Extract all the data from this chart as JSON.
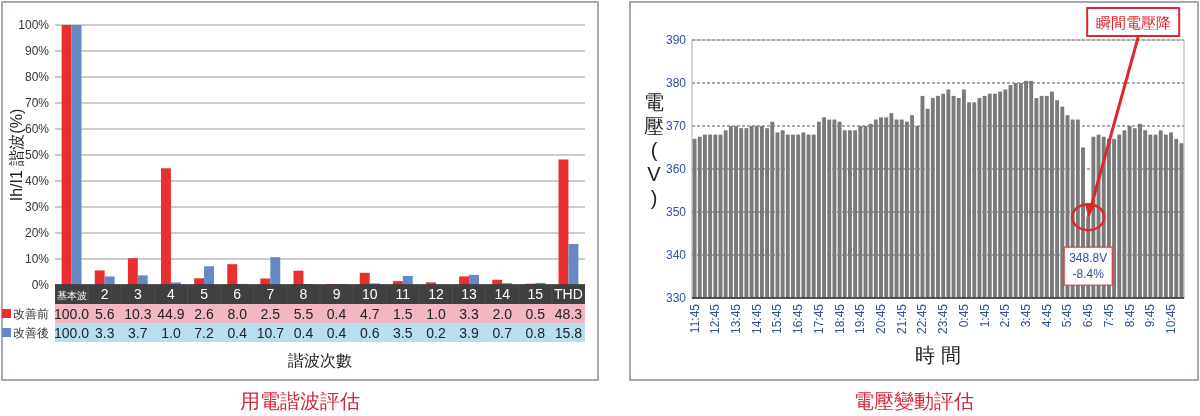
{
  "chart_data": [
    {
      "type": "bar",
      "title": "用電諧波評估",
      "xlabel": "諧波次數",
      "ylabel": "Ih/I1 諧波(%)",
      "categories": [
        "基本波",
        "2",
        "3",
        "4",
        "5",
        "6",
        "7",
        "8",
        "9",
        "10",
        "11",
        "12",
        "13",
        "14",
        "15",
        "THD"
      ],
      "series": [
        {
          "name": "改善前",
          "color": "#e8312f",
          "values": [
            100,
            5.6,
            10.3,
            44.9,
            2.6,
            8,
            2.5,
            5.5,
            0.4,
            4.7,
            1.5,
            1,
            3.3,
            2,
            0.5,
            48.3
          ],
          "value_labels": [
            "100.0",
            "5.6",
            "10.3",
            "44.9",
            "2.6",
            "8.0",
            "2.5",
            "5.5",
            "0.4",
            "4.7",
            "1.5",
            "1.0",
            "3.3",
            "2.0",
            "0.5",
            "48.3"
          ]
        },
        {
          "name": "改善後",
          "color": "#6688c3",
          "values": [
            100,
            3.3,
            3.7,
            1,
            7.2,
            0.4,
            10.7,
            0.4,
            0.4,
            0.6,
            3.5,
            0.2,
            3.9,
            0.7,
            0.8,
            15.8
          ],
          "value_labels": [
            "100.0",
            "3.3",
            "3.7",
            "1.0",
            "7.2",
            "0.4",
            "10.7",
            "0.4",
            "0.4",
            "0.6",
            "3.5",
            "0.2",
            "3.9",
            "0.7",
            "0.8",
            "15.8"
          ]
        }
      ],
      "ylim": [
        0,
        100
      ],
      "yticks": [
        {
          "value": 0,
          "label": "0%"
        },
        {
          "value": 10,
          "label": "10%"
        },
        {
          "value": 20,
          "label": "20%"
        },
        {
          "value": 30,
          "label": "30%"
        },
        {
          "value": 40,
          "label": "40%"
        },
        {
          "value": 50,
          "label": "50%"
        },
        {
          "value": 60,
          "label": "60%"
        },
        {
          "value": 70,
          "label": "70%"
        },
        {
          "value": 80,
          "label": "80%"
        },
        {
          "value": 90,
          "label": "90%"
        },
        {
          "value": 100,
          "label": "100%"
        }
      ],
      "grid": "y",
      "legend": "bottom left"
    },
    {
      "type": "bar",
      "title": "電壓變動評估",
      "xlabel": "時 間",
      "ylabel": "電壓(V)",
      "categories": [
        "11:45",
        null,
        null,
        null,
        "12:45",
        null,
        null,
        null,
        "13:45",
        null,
        null,
        null,
        "14:45",
        null,
        null,
        null,
        "15:45",
        null,
        null,
        null,
        "16:45",
        null,
        null,
        null,
        "17:45",
        null,
        null,
        null,
        "18:45",
        null,
        null,
        null,
        "19:45",
        null,
        null,
        null,
        "20:45",
        null,
        null,
        null,
        "21:45",
        null,
        null,
        null,
        "22:45",
        null,
        null,
        null,
        "23:45",
        null,
        null,
        null,
        "0:45",
        null,
        null,
        null,
        "1:45",
        null,
        null,
        null,
        "2:45",
        null,
        null,
        null,
        "3:45",
        null,
        null,
        null,
        "4:45",
        null,
        null,
        null,
        "5:45",
        null,
        null,
        null,
        "6:45",
        null,
        null,
        null,
        "7:45",
        null,
        null,
        null,
        "8:45",
        null,
        null,
        null,
        "9:45",
        null,
        null,
        null,
        "10:45",
        null,
        null
      ],
      "series": [
        {
          "color": "#7a7a7a",
          "values": [
            367,
            367.5,
            368,
            368,
            368,
            368,
            369,
            370,
            370,
            369.5,
            369.5,
            370,
            370,
            370,
            369.5,
            371,
            368.5,
            369,
            368,
            368,
            368,
            368.5,
            368,
            368,
            371,
            372,
            371.5,
            371.5,
            371,
            369,
            369,
            369,
            370,
            370,
            370.5,
            371.5,
            372,
            372,
            373,
            371.5,
            371.5,
            371,
            372.5,
            370,
            377,
            374,
            376.5,
            377,
            377.5,
            378.5,
            377,
            376.5,
            378.5,
            375.5,
            375.5,
            376.5,
            377,
            377.5,
            377.5,
            378,
            378.5,
            379.5,
            380,
            380,
            380.5,
            380.5,
            376.5,
            377,
            377,
            378,
            376,
            374.5,
            372.5,
            371.5,
            371.5,
            365,
            348.8,
            367.5,
            368,
            367.5,
            367,
            367,
            368,
            369,
            370,
            369.5,
            370.5,
            369,
            368,
            368,
            369,
            368,
            368.5,
            367,
            366
          ]
        }
      ],
      "ylim": [
        330,
        390
      ],
      "yticks": [
        330,
        340,
        350,
        360,
        370,
        380,
        390
      ],
      "grid": "y",
      "annotations": [
        {
          "text": "瞬間電壓降",
          "x": "6:45",
          "y": 348.8
        },
        {
          "text": "348.8V",
          "x": "6:45",
          "y": 348.8
        },
        "-8.4%"
      ]
    }
  ]
}
